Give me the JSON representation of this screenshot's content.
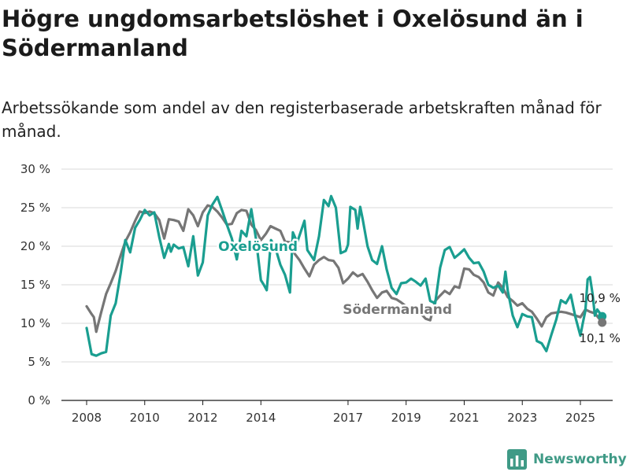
{
  "header": {
    "title": "Högre ungdomsarbetslöshet i Oxelösund än i Södermanland",
    "subtitle": "Arbetssökande som andel av den registerbaserade arbetskraften månad för månad."
  },
  "brand": {
    "name": "Newsworthy",
    "logo_icon": "bar-chart-icon"
  },
  "colors": {
    "oxelosund": "#1a9e90",
    "sodermanland": "#767676",
    "grid": "#d9d9d9",
    "brand": "#3f9a86"
  },
  "chart_data": {
    "type": "line",
    "title": "Högre ungdomsarbetslöshet i Oxelösund än i Södermanland",
    "subtitle": "Arbetssökande som andel av den registerbaserade arbetskraften månad för månad.",
    "xlabel": "",
    "ylabel": "",
    "xlim": [
      2007.7,
      2026.0
    ],
    "ylim": [
      0,
      30
    ],
    "x_ticks": [
      2008,
      2010,
      2012,
      2014,
      2017,
      2019,
      2021,
      2023,
      2025
    ],
    "x_tick_labels": [
      "2008",
      "2010",
      "2012",
      "2014",
      "2017",
      "2019",
      "2021",
      "2023",
      "2025"
    ],
    "y_ticks": [
      0,
      5,
      10,
      15,
      20,
      25,
      30
    ],
    "y_tick_labels": [
      "0 %",
      "5 %",
      "10 %",
      "15 %",
      "20 %",
      "25 %",
      "30 %"
    ],
    "grid": "horizontal",
    "legend": "none (direct labels)",
    "series": [
      {
        "name": "Oxelösund",
        "color": "#1a9e90",
        "end_label": "10,9 %",
        "points": [
          [
            2008.0,
            9.4
          ],
          [
            2008.17,
            6.0
          ],
          [
            2008.33,
            5.8
          ],
          [
            2008.5,
            6.1
          ],
          [
            2008.67,
            6.3
          ],
          [
            2008.83,
            11.0
          ],
          [
            2009.0,
            12.6
          ],
          [
            2009.17,
            16.5
          ],
          [
            2009.33,
            20.8
          ],
          [
            2009.5,
            19.2
          ],
          [
            2009.67,
            22.4
          ],
          [
            2009.83,
            23.4
          ],
          [
            2010.0,
            24.7
          ],
          [
            2010.17,
            24.0
          ],
          [
            2010.33,
            24.4
          ],
          [
            2010.5,
            21.2
          ],
          [
            2010.67,
            18.5
          ],
          [
            2010.83,
            20.3
          ],
          [
            2010.9,
            19.3
          ],
          [
            2011.0,
            20.2
          ],
          [
            2011.17,
            19.7
          ],
          [
            2011.33,
            19.9
          ],
          [
            2011.5,
            17.4
          ],
          [
            2011.67,
            21.3
          ],
          [
            2011.83,
            16.2
          ],
          [
            2012.0,
            17.9
          ],
          [
            2012.17,
            24.0
          ],
          [
            2012.33,
            25.4
          ],
          [
            2012.5,
            26.4
          ],
          [
            2012.67,
            24.6
          ],
          [
            2012.83,
            22.8
          ],
          [
            2013.0,
            21.0
          ],
          [
            2013.17,
            18.3
          ],
          [
            2013.33,
            22.0
          ],
          [
            2013.5,
            21.3
          ],
          [
            2013.67,
            24.8
          ],
          [
            2013.83,
            21.0
          ],
          [
            2014.0,
            15.6
          ],
          [
            2014.1,
            15.0
          ],
          [
            2014.2,
            14.3
          ],
          [
            2014.35,
            20.8
          ],
          [
            2014.5,
            19.8
          ],
          [
            2014.67,
            17.6
          ],
          [
            2014.83,
            16.3
          ],
          [
            2015.0,
            14.0
          ],
          [
            2015.1,
            21.8
          ],
          [
            2015.25,
            20.5
          ],
          [
            2015.5,
            23.3
          ],
          [
            2015.6,
            19.5
          ],
          [
            2015.83,
            18.2
          ],
          [
            2016.0,
            21.3
          ],
          [
            2016.17,
            26.0
          ],
          [
            2016.33,
            25.2
          ],
          [
            2016.42,
            26.5
          ],
          [
            2016.58,
            25.0
          ],
          [
            2016.75,
            19.1
          ],
          [
            2016.92,
            19.4
          ],
          [
            2017.0,
            20.2
          ],
          [
            2017.08,
            25.1
          ],
          [
            2017.25,
            24.7
          ],
          [
            2017.33,
            22.3
          ],
          [
            2017.42,
            25.1
          ],
          [
            2017.5,
            23.6
          ],
          [
            2017.67,
            20.0
          ],
          [
            2017.83,
            18.2
          ],
          [
            2018.0,
            17.7
          ],
          [
            2018.17,
            20.0
          ],
          [
            2018.33,
            17.0
          ],
          [
            2018.5,
            14.6
          ],
          [
            2018.67,
            13.8
          ],
          [
            2018.83,
            15.2
          ],
          [
            2019.0,
            15.3
          ],
          [
            2019.17,
            15.8
          ],
          [
            2019.33,
            15.4
          ],
          [
            2019.5,
            14.9
          ],
          [
            2019.67,
            15.8
          ],
          [
            2019.83,
            12.9
          ],
          [
            2020.0,
            12.6
          ],
          [
            2020.17,
            17.2
          ],
          [
            2020.33,
            19.5
          ],
          [
            2020.5,
            19.9
          ],
          [
            2020.67,
            18.5
          ],
          [
            2020.83,
            19.0
          ],
          [
            2021.0,
            19.6
          ],
          [
            2021.17,
            18.5
          ],
          [
            2021.33,
            17.8
          ],
          [
            2021.5,
            17.9
          ],
          [
            2021.67,
            16.7
          ],
          [
            2021.83,
            15.0
          ],
          [
            2022.0,
            14.6
          ],
          [
            2022.17,
            14.9
          ],
          [
            2022.33,
            14.0
          ],
          [
            2022.42,
            16.7
          ],
          [
            2022.5,
            14.2
          ],
          [
            2022.67,
            11.0
          ],
          [
            2022.83,
            9.5
          ],
          [
            2023.0,
            11.2
          ],
          [
            2023.17,
            10.9
          ],
          [
            2023.33,
            10.8
          ],
          [
            2023.5,
            7.7
          ],
          [
            2023.67,
            7.4
          ],
          [
            2023.83,
            6.4
          ],
          [
            2024.0,
            8.5
          ],
          [
            2024.17,
            10.5
          ],
          [
            2024.33,
            13.0
          ],
          [
            2024.5,
            12.6
          ],
          [
            2024.67,
            13.7
          ],
          [
            2024.83,
            10.8
          ],
          [
            2025.0,
            8.4
          ],
          [
            2025.08,
            10.0
          ],
          [
            2025.17,
            11.6
          ],
          [
            2025.25,
            15.7
          ],
          [
            2025.33,
            16.0
          ],
          [
            2025.42,
            13.8
          ],
          [
            2025.5,
            11.0
          ],
          [
            2025.58,
            11.8
          ],
          [
            2025.75,
            10.9
          ]
        ]
      },
      {
        "name": "Södermanland",
        "color": "#767676",
        "end_label": "10,1 %",
        "points": [
          [
            2008.0,
            12.2
          ],
          [
            2008.17,
            11.2
          ],
          [
            2008.25,
            10.8
          ],
          [
            2008.33,
            8.9
          ],
          [
            2008.5,
            11.4
          ],
          [
            2008.67,
            13.8
          ],
          [
            2008.83,
            15.2
          ],
          [
            2009.0,
            16.8
          ],
          [
            2009.17,
            18.8
          ],
          [
            2009.33,
            20.6
          ],
          [
            2009.5,
            21.8
          ],
          [
            2009.67,
            23.3
          ],
          [
            2009.83,
            24.5
          ],
          [
            2010.0,
            24.3
          ],
          [
            2010.17,
            24.5
          ],
          [
            2010.33,
            24.3
          ],
          [
            2010.5,
            23.4
          ],
          [
            2010.67,
            21.0
          ],
          [
            2010.83,
            23.5
          ],
          [
            2011.0,
            23.4
          ],
          [
            2011.17,
            23.2
          ],
          [
            2011.33,
            22.0
          ],
          [
            2011.5,
            24.8
          ],
          [
            2011.67,
            24.0
          ],
          [
            2011.83,
            22.6
          ],
          [
            2012.0,
            24.4
          ],
          [
            2012.17,
            25.3
          ],
          [
            2012.33,
            25.1
          ],
          [
            2012.5,
            24.5
          ],
          [
            2012.67,
            23.7
          ],
          [
            2012.83,
            22.8
          ],
          [
            2013.0,
            22.9
          ],
          [
            2013.17,
            24.3
          ],
          [
            2013.33,
            24.7
          ],
          [
            2013.5,
            24.6
          ],
          [
            2013.67,
            22.8
          ],
          [
            2013.83,
            22.1
          ],
          [
            2014.0,
            20.8
          ],
          [
            2014.17,
            21.6
          ],
          [
            2014.33,
            22.6
          ],
          [
            2014.5,
            22.3
          ],
          [
            2014.67,
            22.0
          ],
          [
            2014.83,
            20.6
          ],
          [
            2015.0,
            20.5
          ],
          [
            2015.17,
            19.0
          ],
          [
            2015.33,
            18.2
          ],
          [
            2015.5,
            17.1
          ],
          [
            2015.67,
            16.1
          ],
          [
            2015.83,
            17.6
          ],
          [
            2016.0,
            18.2
          ],
          [
            2016.17,
            18.6
          ],
          [
            2016.33,
            18.2
          ],
          [
            2016.5,
            18.1
          ],
          [
            2016.67,
            17.2
          ],
          [
            2016.83,
            15.2
          ],
          [
            2017.0,
            15.8
          ],
          [
            2017.17,
            16.6
          ],
          [
            2017.33,
            16.1
          ],
          [
            2017.5,
            16.4
          ],
          [
            2017.67,
            15.4
          ],
          [
            2017.83,
            14.3
          ],
          [
            2018.0,
            13.3
          ],
          [
            2018.17,
            14.0
          ],
          [
            2018.33,
            14.2
          ],
          [
            2018.5,
            13.3
          ],
          [
            2018.67,
            13.1
          ],
          [
            2018.83,
            12.7
          ],
          [
            2019.0,
            12.2
          ],
          [
            2019.17,
            11.9
          ],
          [
            2019.33,
            11.6
          ],
          [
            2019.5,
            11.3
          ],
          [
            2019.67,
            10.6
          ],
          [
            2019.83,
            10.4
          ],
          [
            2020.0,
            12.9
          ],
          [
            2020.17,
            13.6
          ],
          [
            2020.33,
            14.2
          ],
          [
            2020.5,
            13.8
          ],
          [
            2020.67,
            14.8
          ],
          [
            2020.83,
            14.6
          ],
          [
            2021.0,
            17.1
          ],
          [
            2021.17,
            17.0
          ],
          [
            2021.33,
            16.3
          ],
          [
            2021.5,
            16.0
          ],
          [
            2021.67,
            15.3
          ],
          [
            2021.83,
            14.0
          ],
          [
            2022.0,
            13.6
          ],
          [
            2022.17,
            15.3
          ],
          [
            2022.33,
            14.6
          ],
          [
            2022.5,
            13.4
          ],
          [
            2022.67,
            12.9
          ],
          [
            2022.83,
            12.3
          ],
          [
            2023.0,
            12.6
          ],
          [
            2023.17,
            11.9
          ],
          [
            2023.33,
            11.5
          ],
          [
            2023.5,
            10.6
          ],
          [
            2023.67,
            9.6
          ],
          [
            2023.83,
            10.8
          ],
          [
            2024.0,
            11.3
          ],
          [
            2024.17,
            11.4
          ],
          [
            2024.33,
            11.5
          ],
          [
            2024.5,
            11.4
          ],
          [
            2024.67,
            11.2
          ],
          [
            2024.83,
            11.0
          ],
          [
            2025.0,
            10.8
          ],
          [
            2025.17,
            11.8
          ],
          [
            2025.33,
            11.5
          ],
          [
            2025.5,
            11.3
          ],
          [
            2025.67,
            10.5
          ],
          [
            2025.75,
            10.1
          ]
        ]
      }
    ]
  }
}
